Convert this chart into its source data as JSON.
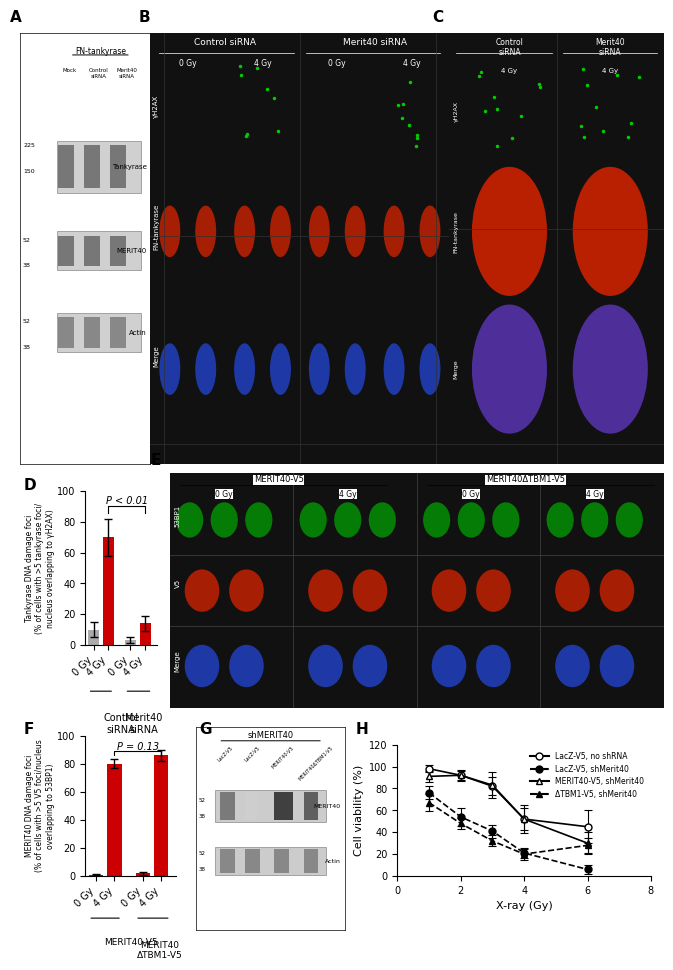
{
  "panel_D": {
    "ylabel": "Tankyrase DNA damage foci\n(% of cells with >5 tankyrase foci/\nnucleus overlapping to γH2AX)",
    "ylim": [
      0,
      100
    ],
    "yticks": [
      0,
      20,
      40,
      60,
      80,
      100
    ],
    "xlabels": [
      "0 Gy",
      "4 Gy",
      "0 Gy",
      "4 Gy"
    ],
    "values": [
      10,
      70,
      3,
      14
    ],
    "errors": [
      5,
      12,
      2,
      5
    ],
    "colors": [
      "#aaaaaa",
      "#cc0000",
      "#aaaaaa",
      "#cc0000"
    ],
    "pval_text": "P < 0.01",
    "group_labels": [
      "Control\nsiRNA",
      "Merit40\nsiRNA"
    ]
  },
  "panel_F": {
    "ylabel": "MERIT40 DNA damage foci\n(% of cells with >5 V5 foci/nucleus\noverlapping to 53BP1)",
    "ylim": [
      0,
      100
    ],
    "yticks": [
      0,
      20,
      40,
      60,
      80,
      100
    ],
    "xlabels": [
      "0 Gy",
      "4 Gy",
      "0 Gy",
      "4 Gy"
    ],
    "values": [
      1,
      80,
      2,
      86
    ],
    "errors": [
      0.5,
      3,
      1,
      4
    ],
    "colors": [
      "#cc0000",
      "#cc0000",
      "#cc0000",
      "#cc0000"
    ],
    "pval_text": "P = 0.13",
    "group_labels": [
      "MERIT40-V5",
      "MERIT40\nΔTBM1-V5"
    ]
  },
  "panel_H": {
    "xlabel": "X-ray (Gy)",
    "ylabel": "Cell viability (%)",
    "xlim": [
      0,
      8
    ],
    "ylim": [
      0,
      120
    ],
    "xticks": [
      0,
      2,
      4,
      6,
      8
    ],
    "yticks": [
      0,
      20,
      40,
      60,
      80,
      100,
      120
    ],
    "series": [
      {
        "label": "LacZ-V5, no shRNA",
        "x": [
          1,
          2,
          3,
          4,
          6
        ],
        "y": [
          98,
          92,
          82,
          52,
          45
        ],
        "yerr": [
          3,
          4,
          8,
          10,
          15
        ],
        "linestyle": "-",
        "marker": "o",
        "filled": false
      },
      {
        "label": "LacZ-V5, shMerit40",
        "x": [
          1,
          2,
          3,
          4,
          6
        ],
        "y": [
          76,
          54,
          41,
          21,
          6
        ],
        "yerr": [
          6,
          8,
          6,
          5,
          4
        ],
        "linestyle": "--",
        "marker": "o",
        "filled": true
      },
      {
        "label": "MERIT40-V5, shMerit40",
        "x": [
          1,
          2,
          3,
          4,
          6
        ],
        "y": [
          91,
          92,
          83,
          52,
          30
        ],
        "yerr": [
          5,
          5,
          12,
          13,
          10
        ],
        "linestyle": "-",
        "marker": "^",
        "filled": false
      },
      {
        "label": "ΔTBM1-V5, shMerit40",
        "x": [
          1,
          2,
          3,
          4,
          6
        ],
        "y": [
          67,
          48,
          32,
          20,
          28
        ],
        "yerr": [
          8,
          5,
          5,
          5,
          7
        ],
        "linestyle": "--",
        "marker": "^",
        "filled": true
      }
    ]
  },
  "colors": {
    "img_bg": "#111111",
    "wb_bg": "#e8e8e8",
    "wb_band": "#555555",
    "red_bar": "#cc0000",
    "gray_bar": "#aaaaaa"
  }
}
